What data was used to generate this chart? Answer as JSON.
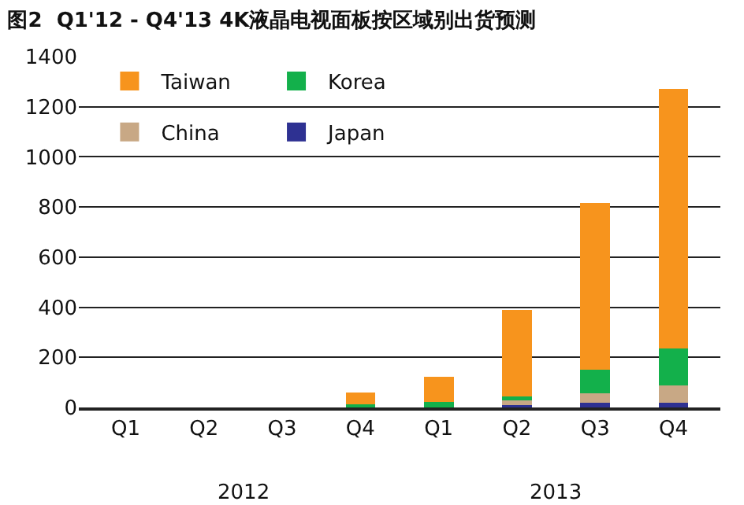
{
  "chart_data": {
    "type": "bar",
    "title": "图2  Q1'12 - Q4'13 4K液晶电视面板按区域别出货预测",
    "categories": [
      "Q1",
      "Q2",
      "Q3",
      "Q4",
      "Q1",
      "Q2",
      "Q3",
      "Q4"
    ],
    "stacked": true,
    "series": [
      {
        "name": "Japan",
        "color": "#2e3192",
        "values": [
          0,
          0,
          0,
          0,
          0,
          10,
          18,
          18
        ]
      },
      {
        "name": "China",
        "color": "#c8a885",
        "values": [
          0,
          0,
          0,
          0,
          0,
          19,
          37,
          71
        ]
      },
      {
        "name": "Korea",
        "color": "#13b04b",
        "values": [
          0,
          0,
          0,
          14,
          22,
          15,
          96,
          146
        ]
      },
      {
        "name": "Taiwan",
        "color": "#f7941d",
        "values": [
          0,
          0,
          0,
          47,
          100,
          345,
          664,
          1035
        ]
      }
    ],
    "ylim": [
      0,
      1400
    ],
    "yticks": [
      0,
      200,
      400,
      600,
      800,
      1000,
      1200,
      1400
    ],
    "grid": "y",
    "legend": "top left",
    "annotations": [
      "2012",
      "2013"
    ]
  }
}
